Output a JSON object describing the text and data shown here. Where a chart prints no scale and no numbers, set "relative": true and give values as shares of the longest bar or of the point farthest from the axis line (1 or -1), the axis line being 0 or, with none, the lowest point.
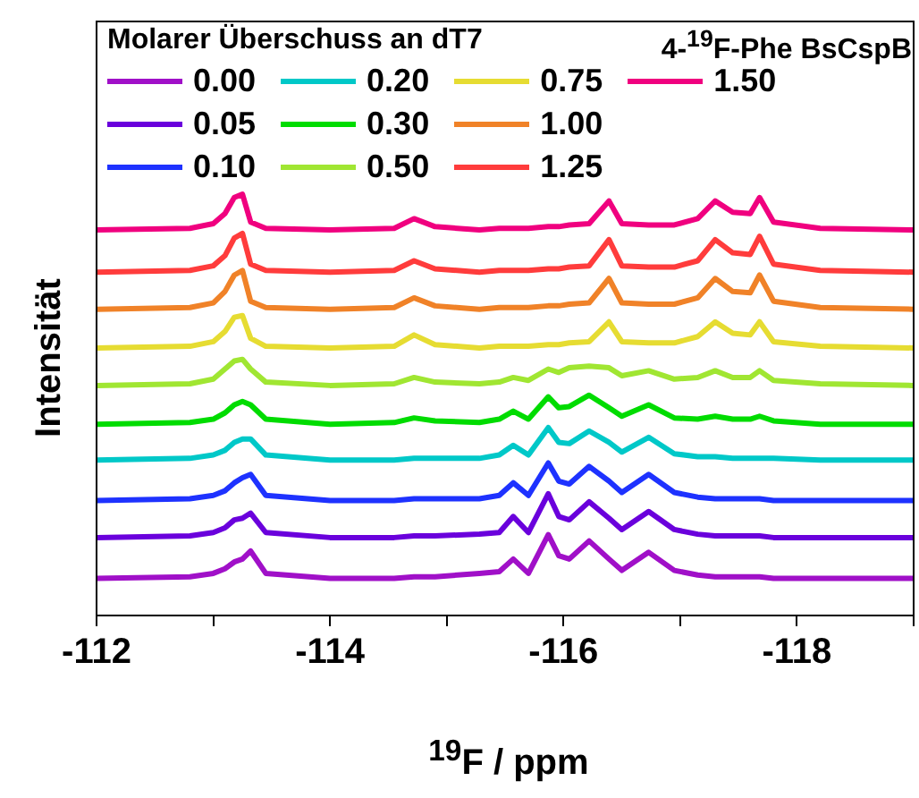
{
  "chart_data": {
    "type": "line",
    "title": "4-$^{19}$F-Phe BsCspB",
    "xlabel": "$^{19}$F / ppm",
    "ylabel": "Intensität",
    "legend_title": "Molarer Überschuss an dT7",
    "legend": "top left",
    "relative": true,
    "xlim": [
      -112,
      -119
    ],
    "xticks": [
      -112,
      {
        "value": -113,
        "label": null
      },
      -114,
      {
        "value": -115,
        "label": null
      },
      -116,
      {
        "value": -117,
        "label": null
      },
      -118,
      {
        "value": -119,
        "label": null
      }
    ],
    "x": [
      -112,
      -112.8,
      -113.0,
      -113.1,
      -113.18,
      -113.25,
      -113.32,
      -113.45,
      -114.0,
      -114.55,
      -114.72,
      -114.9,
      -115.28,
      -115.45,
      -115.57,
      -115.7,
      -115.87,
      -115.96,
      -116.05,
      -116.22,
      -116.39,
      -116.5,
      -116.73,
      -116.95,
      -117.15,
      -117.3,
      -117.45,
      -117.6,
      -117.68,
      -117.8,
      -118.2,
      -119
    ],
    "series": [
      {
        "name": "0.00",
        "color": "#a010c8",
        "values": [
          0.088,
          0.092,
          0.1,
          0.111,
          0.127,
          0.134,
          0.153,
          0.1,
          0.088,
          0.088,
          0.092,
          0.092,
          0.1,
          0.104,
          0.134,
          0.1,
          0.192,
          0.142,
          0.134,
          0.177,
          0.134,
          0.107,
          0.15,
          0.107,
          0.096,
          0.092,
          0.092,
          0.092,
          0.092,
          0.088,
          0.088,
          0.088
        ]
      },
      {
        "name": "0.05",
        "color": "#6a00dc",
        "values": [
          0.185,
          0.189,
          0.197,
          0.208,
          0.227,
          0.231,
          0.243,
          0.197,
          0.185,
          0.185,
          0.189,
          0.189,
          0.193,
          0.197,
          0.235,
          0.197,
          0.289,
          0.235,
          0.227,
          0.27,
          0.231,
          0.204,
          0.247,
          0.204,
          0.193,
          0.189,
          0.189,
          0.189,
          0.189,
          0.185,
          0.185,
          0.185
        ]
      },
      {
        "name": "0.10",
        "color": "#1e32ff",
        "values": [
          0.273,
          0.277,
          0.285,
          0.296,
          0.315,
          0.327,
          0.335,
          0.285,
          0.273,
          0.273,
          0.277,
          0.277,
          0.277,
          0.285,
          0.315,
          0.285,
          0.362,
          0.319,
          0.312,
          0.354,
          0.319,
          0.292,
          0.335,
          0.292,
          0.281,
          0.277,
          0.277,
          0.277,
          0.277,
          0.273,
          0.273,
          0.273
        ]
      },
      {
        "name": "0.20",
        "color": "#00c8c8",
        "values": [
          0.369,
          0.373,
          0.381,
          0.392,
          0.411,
          0.419,
          0.419,
          0.381,
          0.369,
          0.369,
          0.373,
          0.373,
          0.373,
          0.381,
          0.404,
          0.381,
          0.446,
          0.411,
          0.408,
          0.438,
          0.411,
          0.388,
          0.423,
          0.384,
          0.377,
          0.377,
          0.373,
          0.373,
          0.373,
          0.373,
          0.369,
          0.369
        ]
      },
      {
        "name": "0.30",
        "color": "#00dc00",
        "values": [
          0.454,
          0.458,
          0.466,
          0.481,
          0.5,
          0.508,
          0.5,
          0.466,
          0.454,
          0.458,
          0.469,
          0.462,
          0.458,
          0.466,
          0.485,
          0.466,
          0.519,
          0.493,
          0.496,
          0.523,
          0.493,
          0.473,
          0.5,
          0.469,
          0.466,
          0.473,
          0.466,
          0.466,
          0.473,
          0.462,
          0.454,
          0.454
        ]
      },
      {
        "name": "0.50",
        "color": "#a0e632",
        "values": [
          0.546,
          0.55,
          0.561,
          0.585,
          0.604,
          0.608,
          0.585,
          0.554,
          0.546,
          0.55,
          0.565,
          0.554,
          0.55,
          0.554,
          0.565,
          0.558,
          0.585,
          0.577,
          0.588,
          0.592,
          0.588,
          0.569,
          0.581,
          0.561,
          0.565,
          0.581,
          0.565,
          0.565,
          0.581,
          0.558,
          0.55,
          0.546
        ]
      },
      {
        "name": "0.75",
        "color": "#e6dc32",
        "values": [
          0.635,
          0.639,
          0.65,
          0.674,
          0.708,
          0.712,
          0.658,
          0.639,
          0.635,
          0.639,
          0.666,
          0.643,
          0.635,
          0.639,
          0.639,
          0.639,
          0.643,
          0.643,
          0.647,
          0.65,
          0.697,
          0.65,
          0.647,
          0.647,
          0.662,
          0.697,
          0.67,
          0.666,
          0.697,
          0.65,
          0.639,
          0.635
        ]
      },
      {
        "name": "1.00",
        "color": "#f08228",
        "values": [
          0.727,
          0.731,
          0.742,
          0.769,
          0.808,
          0.819,
          0.746,
          0.731,
          0.727,
          0.731,
          0.754,
          0.735,
          0.727,
          0.731,
          0.731,
          0.731,
          0.735,
          0.735,
          0.739,
          0.742,
          0.8,
          0.742,
          0.739,
          0.739,
          0.754,
          0.8,
          0.769,
          0.766,
          0.808,
          0.746,
          0.731,
          0.727
        ]
      },
      {
        "name": "1.25",
        "color": "#ff3c3c",
        "values": [
          0.815,
          0.819,
          0.83,
          0.854,
          0.896,
          0.907,
          0.834,
          0.819,
          0.815,
          0.819,
          0.842,
          0.823,
          0.815,
          0.819,
          0.819,
          0.819,
          0.823,
          0.823,
          0.827,
          0.83,
          0.892,
          0.83,
          0.827,
          0.827,
          0.842,
          0.892,
          0.861,
          0.857,
          0.9,
          0.834,
          0.819,
          0.815
        ]
      },
      {
        "name": "1.50",
        "color": "#f0007f",
        "values": [
          0.915,
          0.919,
          0.93,
          0.954,
          0.992,
          1,
          0.934,
          0.919,
          0.915,
          0.919,
          0.942,
          0.923,
          0.915,
          0.919,
          0.919,
          0.919,
          0.923,
          0.923,
          0.927,
          0.93,
          0.984,
          0.93,
          0.927,
          0.927,
          0.942,
          0.984,
          0.957,
          0.954,
          0.992,
          0.934,
          0.919,
          0.915
        ]
      }
    ]
  }
}
